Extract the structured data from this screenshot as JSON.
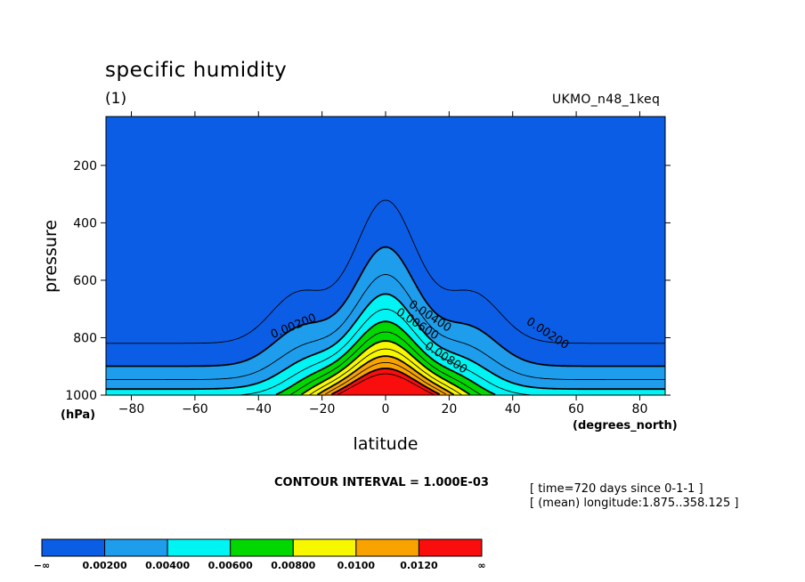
{
  "header": {
    "title": "specific humidity",
    "subtitle": "(1)",
    "model": "UKMO_n48_1keq"
  },
  "footer": {
    "contour_interval": "CONTOUR INTERVAL = 1.000E-03",
    "meta_time": "[ time=720 days since 0-1-1 ]",
    "meta_longitude": "[ (mean) longitude:1.875..358.125 ]"
  },
  "colors": {
    "levels": [
      "#0b5de5",
      "#1e9ded",
      "#00f4f4",
      "#00d800",
      "#f7f700",
      "#f9a300",
      "#f90d0d"
    ],
    "line": "#000000"
  },
  "chart_data": {
    "type": "contour",
    "title": "specific humidity",
    "subtitle": "(1)",
    "xlabel": "latitude",
    "ylabel": "pressure",
    "xunit": "(degrees_north)",
    "yunit": "(hPa)",
    "xlim": [
      -88,
      88
    ],
    "ylim": [
      1000,
      30
    ],
    "xticks": [
      -80,
      -60,
      -40,
      -20,
      0,
      20,
      40,
      60,
      80
    ],
    "xtick_labels": [
      "−80",
      "−60",
      "−40",
      "−20",
      "0",
      "20",
      "40",
      "60",
      "80"
    ],
    "yticks": [
      200,
      400,
      600,
      800,
      1000
    ],
    "grid": false,
    "contour_interval": 0.001,
    "contour_levels": [
      0.001,
      0.002,
      0.003,
      0.004,
      0.005,
      0.006,
      0.007,
      0.008,
      0.009,
      0.01,
      0.011,
      0.012,
      0.013
    ],
    "contour_labels": [
      {
        "text": "0.00200",
        "x": -29,
        "y": 760
      },
      {
        "text": "0.00400",
        "x": 14,
        "y": 725
      },
      {
        "text": "0.00600",
        "x": 10,
        "y": 752
      },
      {
        "text": "0.00800",
        "x": 19,
        "y": 870
      },
      {
        "text": "0.00200",
        "x": 51,
        "y": 785
      }
    ],
    "colorbar": {
      "ticks": [
        "−∞",
        "0.00200",
        "0.00400",
        "0.00600",
        "0.00800",
        "0.0100",
        "0.0120",
        "∞"
      ]
    }
  }
}
